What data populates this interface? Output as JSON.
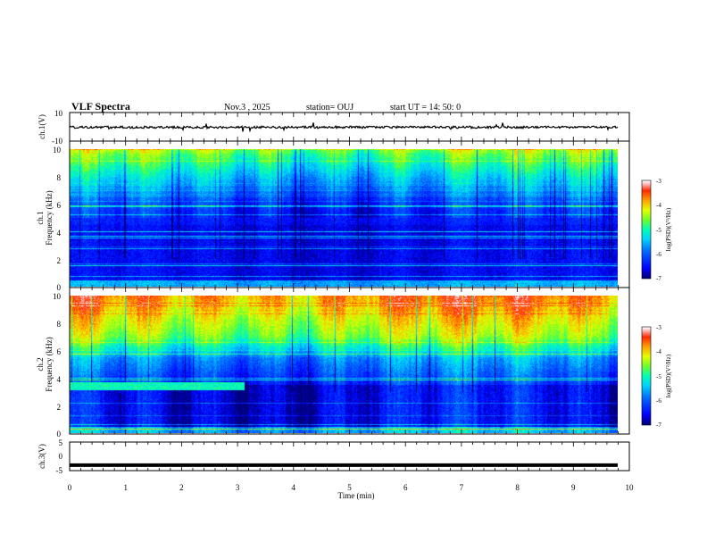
{
  "header": {
    "title": "VLF Spectra",
    "date": "Nov.3 , 2025",
    "station": "station= OUJ",
    "start": "start UT = 14: 50: 0"
  },
  "chart_data": [
    {
      "type": "line",
      "panel": "ch1-waveform",
      "ylabel": "ch.1(V)",
      "ylim": [
        -10,
        10
      ],
      "yticks": [
        "10",
        "-10"
      ],
      "xlim": [
        0,
        10
      ],
      "series": [
        {
          "values_level": -0.3
        }
      ]
    },
    {
      "type": "heatmap",
      "panel": "ch1-spectrogram",
      "ylabel": "ch.1",
      "ylabel2": "Frequency (kHz)",
      "ylim": [
        0,
        10
      ],
      "yticks": [
        "0",
        "2",
        "4",
        "6",
        "8",
        "10"
      ],
      "xlim": [
        0,
        9.85
      ],
      "colorbar": {
        "label": "log(PSD)(V²/Hz)",
        "range": [
          -7,
          -3
        ],
        "ticks": [
          "-3",
          "-4",
          "-5",
          "-6",
          "-7"
        ]
      }
    },
    {
      "type": "heatmap",
      "panel": "ch2-spectrogram",
      "ylabel": "ch.2",
      "ylabel2": "Frequency (kHz)",
      "ylim": [
        0,
        10
      ],
      "yticks": [
        "0",
        "2",
        "4",
        "6",
        "8",
        "10"
      ],
      "xlim": [
        0,
        9.85
      ],
      "colorbar": {
        "label": "log(PSD)(V²/Hz)",
        "range": [
          -7,
          -3
        ],
        "ticks": [
          "-3",
          "-4",
          "-5",
          "-6",
          "-7"
        ]
      }
    },
    {
      "type": "line",
      "panel": "ch3-waveform",
      "ylabel": "ch.3(V)",
      "ylim": [
        -5,
        5
      ],
      "yticks": [
        "5",
        "0",
        "-5"
      ],
      "xlim": [
        0,
        10
      ],
      "series": [
        {
          "values_level": -3.1
        }
      ]
    }
  ],
  "xaxis": {
    "label": "Time (min)",
    "ticks": [
      "0",
      "1",
      "2",
      "3",
      "4",
      "5",
      "6",
      "7",
      "8",
      "9",
      "10"
    ]
  },
  "colors": {
    "colormap": [
      "#00008b",
      "#0000ff",
      "#00bfff",
      "#00ffb0",
      "#7fff00",
      "#ffff00",
      "#ff8000",
      "#ff0000",
      "#ffffff"
    ]
  }
}
